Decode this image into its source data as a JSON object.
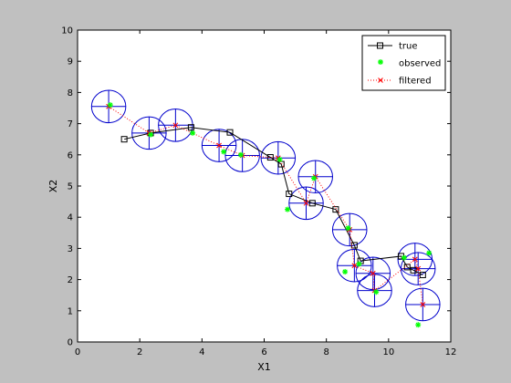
{
  "chart_data": {
    "type": "scatter",
    "title": "",
    "xlabel": "X1",
    "ylabel": "X2",
    "xlim": [
      0,
      12
    ],
    "ylim": [
      0,
      10
    ],
    "xticks": [
      "0",
      "2",
      "4",
      "6",
      "8",
      "10",
      "12"
    ],
    "yticks": [
      "0",
      "1",
      "2",
      "3",
      "4",
      "5",
      "6",
      "7",
      "8",
      "9",
      "10"
    ],
    "grid": false,
    "legend_position": "top-right",
    "series": [
      {
        "name": "true",
        "style": "line-square",
        "color": "#000000",
        "x": [
          1.5,
          2.35,
          3.65,
          4.9,
          6.2,
          6.55,
          6.8,
          7.55,
          8.3,
          8.9,
          9.1,
          10.4,
          10.6,
          10.8,
          11.1
        ],
        "y": [
          6.5,
          6.7,
          6.88,
          6.72,
          5.92,
          5.7,
          4.75,
          4.45,
          4.25,
          3.1,
          2.6,
          2.75,
          2.4,
          2.3,
          2.15
        ]
      },
      {
        "name": "observed",
        "style": "star",
        "color": "#00ff00",
        "x": [
          1.05,
          2.35,
          3.7,
          4.7,
          5.25,
          6.5,
          6.75,
          7.6,
          8.7,
          8.6,
          9.05,
          9.6,
          10.5,
          11.3,
          10.95
        ],
        "y": [
          7.6,
          6.65,
          6.7,
          6.1,
          6.0,
          5.85,
          4.25,
          5.25,
          3.65,
          2.25,
          2.5,
          1.6,
          2.7,
          2.85,
          0.55
        ]
      },
      {
        "name": "filtered",
        "style": "dotted-x",
        "color": "#ff0000",
        "x": [
          1.0,
          2.3,
          3.15,
          4.55,
          5.3,
          6.45,
          7.35,
          7.65,
          8.75,
          8.9,
          9.5,
          9.55,
          10.85,
          10.95,
          11.1
        ],
        "y": [
          7.55,
          6.7,
          6.95,
          6.3,
          5.98,
          5.9,
          4.45,
          5.3,
          3.6,
          2.45,
          2.2,
          1.65,
          2.65,
          2.35,
          1.2
        ]
      }
    ],
    "ellipses": {
      "color": "#0000cc",
      "radius_x": 0.55,
      "radius_y": 0.52
    }
  }
}
